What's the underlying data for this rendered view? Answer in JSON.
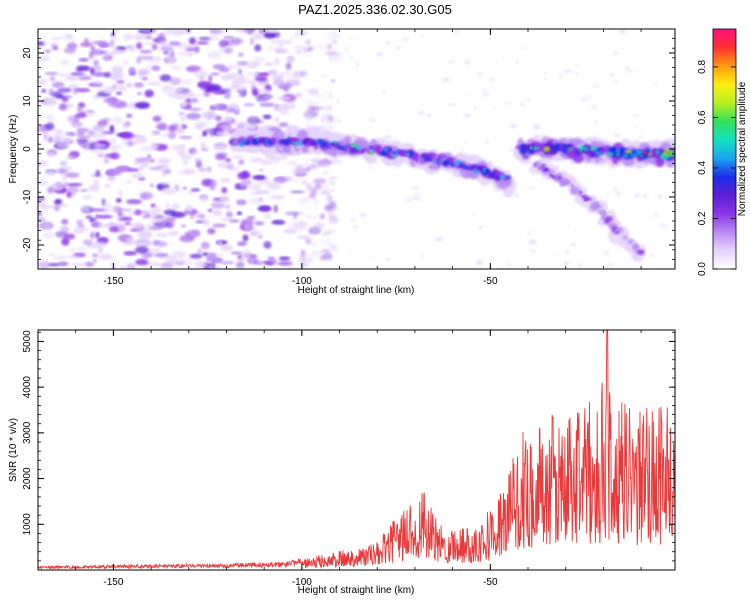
{
  "title": "PAZ1.2025.336.02.30.G05",
  "colors": {
    "snr_line": "#e83a3a",
    "axis": "#000000",
    "colormap": [
      "#ffffff",
      "#e6d3fb",
      "#b78af2",
      "#8a35e8",
      "#5a1fd6",
      "#1d2ee8",
      "#1aa6f0",
      "#14e0c0",
      "#34e05a",
      "#b8f020",
      "#ffee10",
      "#ff9a10",
      "#ff3030",
      "#ff1080"
    ]
  },
  "chart_data": [
    {
      "type": "heatmap",
      "name": "spectrogram",
      "xlabel": "Height of straight line (km)",
      "ylabel": "Frequency (Hz)",
      "xlim": [
        -170,
        -1
      ],
      "ylim": [
        -25,
        25
      ],
      "xticks": [
        -150,
        -100,
        -50
      ],
      "yticks": [
        -20,
        -10,
        0,
        10,
        20
      ],
      "grid": false,
      "noise_region": {
        "x": [
          -170,
          -103
        ],
        "y": [
          -25,
          25
        ],
        "level": 0.15
      },
      "signal_traces": [
        {
          "points": [
            [
              -118,
              1.5
            ],
            [
              -100,
              1.5
            ],
            [
              -90,
              0.8
            ],
            [
              -80,
              -0.5
            ],
            [
              -70,
              -1.5
            ],
            [
              -60,
              -3
            ],
            [
              -50,
              -5
            ],
            [
              -45,
              -6.5
            ]
          ],
          "peak": 0.45
        },
        {
          "points": [
            [
              -42,
              0
            ],
            [
              -30,
              0
            ],
            [
              -20,
              -0.5
            ],
            [
              -10,
              -1.2
            ],
            [
              -1,
              -1
            ]
          ],
          "peak": 0.7
        },
        {
          "points": [
            [
              -38,
              -3
            ],
            [
              -30,
              -7
            ],
            [
              -22,
              -12
            ],
            [
              -15,
              -18
            ],
            [
              -10,
              -22
            ]
          ],
          "peak": 0.25
        }
      ]
    },
    {
      "type": "colorbar",
      "name": "colorbar",
      "label": "Normalized spectral amplitude",
      "range": [
        0,
        0.95
      ],
      "ticks": [
        0.0,
        0.2,
        0.4,
        0.6,
        0.8
      ]
    },
    {
      "type": "line",
      "name": "snr",
      "xlabel": "Height of straight line (km)",
      "ylabel": "SNR (10 * v/v)",
      "xlim": [
        -170,
        -1
      ],
      "ylim": [
        0,
        5250
      ],
      "xticks": [
        -150,
        -100,
        -50
      ],
      "yticks": [
        1000,
        2000,
        3000,
        4000,
        5000
      ],
      "envelope": {
        "x": [
          -170,
          -150,
          -120,
          -105,
          -98,
          -90,
          -85,
          -80,
          -76,
          -72,
          -68,
          -64,
          -60,
          -55,
          -50,
          -46,
          -42,
          -38,
          -34,
          -30,
          -26,
          -22,
          -19,
          -17,
          -15,
          -12,
          -8,
          -4,
          -1
        ],
        "y": [
          80,
          110,
          140,
          190,
          280,
          420,
          520,
          620,
          1050,
          1500,
          1800,
          1050,
          1000,
          1000,
          1400,
          2000,
          3000,
          3250,
          3400,
          3500,
          4000,
          3500,
          4600,
          3500,
          3800,
          3500,
          3600,
          3700,
          3400
        ]
      }
    }
  ]
}
